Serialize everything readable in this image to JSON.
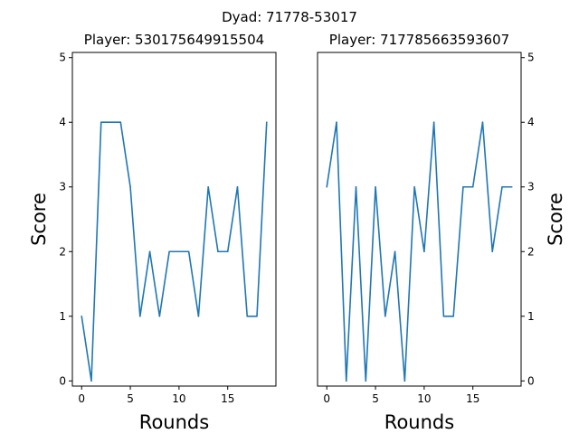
{
  "chart_data": {
    "type": "line",
    "title": "Dyad: 71778-53017",
    "color": "#1f77b4",
    "ylim": [
      -0.08,
      5.08
    ],
    "xlim": [
      -0.95,
      19.95
    ],
    "panels": [
      {
        "title": "Player: 530175649915504",
        "xlabel": "Rounds",
        "ylabel": "Score",
        "yaxis_side": "left",
        "x_ticks": [
          0,
          5,
          10,
          15
        ],
        "y_ticks": [
          0,
          1,
          2,
          3,
          4,
          5
        ],
        "x": [
          0,
          1,
          2,
          3,
          4,
          5,
          6,
          7,
          8,
          9,
          10,
          11,
          12,
          13,
          14,
          15,
          16,
          17,
          18,
          19
        ],
        "y": [
          1,
          0,
          4,
          4,
          4,
          3,
          1,
          2,
          1,
          2,
          2,
          2,
          1,
          3,
          2,
          2,
          3,
          1,
          1,
          4
        ]
      },
      {
        "title": "Player: 717785663593607",
        "xlabel": "Rounds",
        "ylabel": "Score",
        "yaxis_side": "right",
        "x_ticks": [
          0,
          5,
          10,
          15
        ],
        "y_ticks": [
          0,
          1,
          2,
          3,
          4,
          5
        ],
        "x": [
          0,
          1,
          2,
          3,
          4,
          5,
          6,
          7,
          8,
          9,
          10,
          11,
          12,
          13,
          14,
          15,
          16,
          17,
          18,
          19
        ],
        "y": [
          3,
          4,
          0,
          3,
          0,
          3,
          1,
          2,
          0,
          3,
          2,
          4,
          1,
          1,
          3,
          3,
          4,
          2,
          3,
          3
        ]
      }
    ]
  }
}
